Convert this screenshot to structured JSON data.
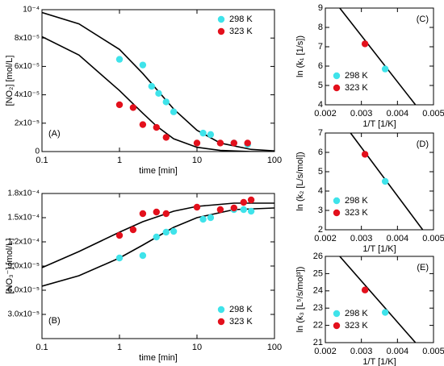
{
  "chart_data": [
    {
      "type": "scatter",
      "panel_label": "(A)",
      "xlabel": "time [min]",
      "ylabel": "[NO₂] [mol/L]",
      "log_x": true,
      "xlim": [
        0.1,
        100
      ],
      "xticks": [
        0.1,
        1,
        10,
        100
      ],
      "ylim": [
        0,
        0.0001
      ],
      "yticks": [
        0,
        {
          "value": 2e-05,
          "label": "2x10⁻⁵"
        },
        {
          "value": 4e-05,
          "label": "4x10⁻⁵"
        },
        {
          "value": 6e-05,
          "label": "6x10⁻⁵"
        },
        {
          "value": 8e-05,
          "label": "8x10⁻⁵"
        },
        {
          "value": 0.0001,
          "label": "10⁻⁴"
        }
      ],
      "legend": "upper right",
      "series": [
        {
          "name": "298 K",
          "color": "#3fe3ea",
          "x": [
            1,
            2,
            2.6,
            3.2,
            4,
            5,
            12,
            15,
            30,
            45
          ],
          "values": [
            6.5e-05,
            6.1e-05,
            4.6e-05,
            4.1e-05,
            3.5e-05,
            2.8e-05,
            1.3e-05,
            1.2e-05,
            6e-06,
            5e-06
          ]
        },
        {
          "name": "323 K",
          "color": "#e3101c",
          "x": [
            1,
            1.5,
            2,
            3,
            4,
            10,
            20,
            30,
            45
          ],
          "values": [
            3.3e-05,
            3.1e-05,
            1.9e-05,
            1.7e-05,
            1e-05,
            6e-06,
            6e-06,
            6e-06,
            6e-06
          ]
        }
      ],
      "lines": [
        {
          "x": [
            0.1,
            0.3,
            1,
            2,
            3,
            5,
            10,
            20,
            50,
            100
          ],
          "values": [
            9.8e-05,
            9e-05,
            7.2e-05,
            5.5e-05,
            4.4e-05,
            3e-05,
            1.5e-05,
            6e-06,
            1.5e-06,
            5e-07
          ]
        },
        {
          "x": [
            0.1,
            0.3,
            1,
            2,
            3,
            5,
            10,
            20,
            50,
            100
          ],
          "values": [
            8.1e-05,
            6.8e-05,
            4.3e-05,
            2.7e-05,
            1.8e-05,
            9e-06,
            3e-06,
            8e-07,
            0,
            0
          ]
        }
      ]
    },
    {
      "type": "scatter",
      "panel_label": "(B)",
      "xlabel": "time [min]",
      "ylabel": "[NO₃⁻] [mol/L]",
      "log_x": true,
      "xlim": [
        0.1,
        100
      ],
      "xticks": [
        0.1,
        1,
        10,
        100
      ],
      "ylim": [
        0,
        0.00018
      ],
      "yticks": [
        {
          "value": 3e-05,
          "label": "3.0x10⁻⁵"
        },
        {
          "value": 6e-05,
          "label": "6.0x10⁻⁵"
        },
        {
          "value": 9e-05,
          "label": "9.0x10⁻⁵"
        },
        {
          "value": 0.00012,
          "label": "1.2x10⁻⁴"
        },
        {
          "value": 0.00015,
          "label": "1.5x10⁻⁴"
        },
        {
          "value": 0.00018,
          "label": "1.8x10⁻⁴"
        }
      ],
      "legend": "lower right",
      "series": [
        {
          "name": "298 K",
          "color": "#3fe3ea",
          "x": [
            1,
            2,
            3,
            4,
            5,
            12,
            15,
            30,
            40,
            50
          ],
          "values": [
            0.0001,
            0.000103,
            0.000126,
            0.000132,
            0.000133,
            0.000148,
            0.00015,
            0.00016,
            0.00016,
            0.000158
          ]
        },
        {
          "name": "323 K",
          "color": "#e3101c",
          "x": [
            1,
            1.5,
            2,
            3,
            4,
            10,
            20,
            30,
            40,
            50
          ],
          "values": [
            0.000128,
            0.000135,
            0.000155,
            0.000157,
            0.000155,
            0.000163,
            0.00016,
            0.000162,
            0.000169,
            0.000172
          ]
        }
      ],
      "lines": [
        {
          "x": [
            0.1,
            0.3,
            1,
            2,
            5,
            10,
            30,
            100
          ],
          "values": [
            8.8e-05,
            0.000108,
            0.000132,
            0.000145,
            0.000158,
            0.000164,
            0.000168,
            0.000168
          ]
        },
        {
          "x": [
            0.1,
            0.3,
            1,
            2,
            5,
            10,
            30,
            100
          ],
          "values": [
            6.5e-05,
            7.8e-05,
            0.0001,
            0.000116,
            0.000138,
            0.00015,
            0.00016,
            0.000162
          ]
        }
      ]
    },
    {
      "type": "scatter",
      "panel_label": "(C)",
      "xlabel": "1/T [1/K]",
      "ylabel": "ln (k₁ [1/s])",
      "log_x": false,
      "xlim": [
        0.002,
        0.005
      ],
      "xticks": [
        0.002,
        0.003,
        0.004,
        0.005
      ],
      "ylim": [
        4,
        9
      ],
      "yticks": [
        4,
        5,
        6,
        7,
        8,
        9
      ],
      "legend": "lower left",
      "series": [
        {
          "name": "298 K",
          "color": "#3fe3ea",
          "x": [
            0.00366
          ],
          "values": [
            5.85
          ]
        },
        {
          "name": "323 K",
          "color": "#e3101c",
          "x": [
            0.0031
          ],
          "values": [
            7.15
          ]
        }
      ],
      "lines": [
        {
          "x": [
            0.0024,
            0.0045
          ],
          "values": [
            9,
            4
          ]
        }
      ]
    },
    {
      "type": "scatter",
      "panel_label": "(D)",
      "xlabel": "1/T [1/K]",
      "ylabel": "ln (k₂ [L/s/mol])",
      "log_x": false,
      "xlim": [
        0.002,
        0.005
      ],
      "xticks": [
        0.002,
        0.003,
        0.004,
        0.005
      ],
      "ylim": [
        2,
        7
      ],
      "yticks": [
        2,
        3,
        4,
        5,
        6,
        7
      ],
      "legend": "lower left",
      "series": [
        {
          "name": "298 K",
          "color": "#3fe3ea",
          "x": [
            0.00366
          ],
          "values": [
            4.5
          ]
        },
        {
          "name": "323 K",
          "color": "#e3101c",
          "x": [
            0.0031
          ],
          "values": [
            5.9
          ]
        }
      ],
      "lines": [
        {
          "x": [
            0.0027,
            0.0047
          ],
          "values": [
            7,
            2
          ]
        }
      ]
    },
    {
      "type": "scatter",
      "panel_label": "(E)",
      "xlabel": "1/T [1/K]",
      "ylabel": "ln (k₃ [L⁵/s/mol³])",
      "log_x": false,
      "xlim": [
        0.002,
        0.005
      ],
      "xticks": [
        0.002,
        0.003,
        0.004,
        0.005
      ],
      "ylim": [
        21,
        26
      ],
      "yticks": [
        21,
        22,
        23,
        24,
        25,
        26
      ],
      "legend": "lower left",
      "series": [
        {
          "name": "298 K",
          "color": "#3fe3ea",
          "x": [
            0.00366
          ],
          "values": [
            22.75
          ]
        },
        {
          "name": "323 K",
          "color": "#e3101c",
          "x": [
            0.0031
          ],
          "values": [
            24.05
          ]
        }
      ],
      "lines": [
        {
          "x": [
            0.0024,
            0.0045
          ],
          "values": [
            26,
            21
          ]
        }
      ]
    }
  ]
}
